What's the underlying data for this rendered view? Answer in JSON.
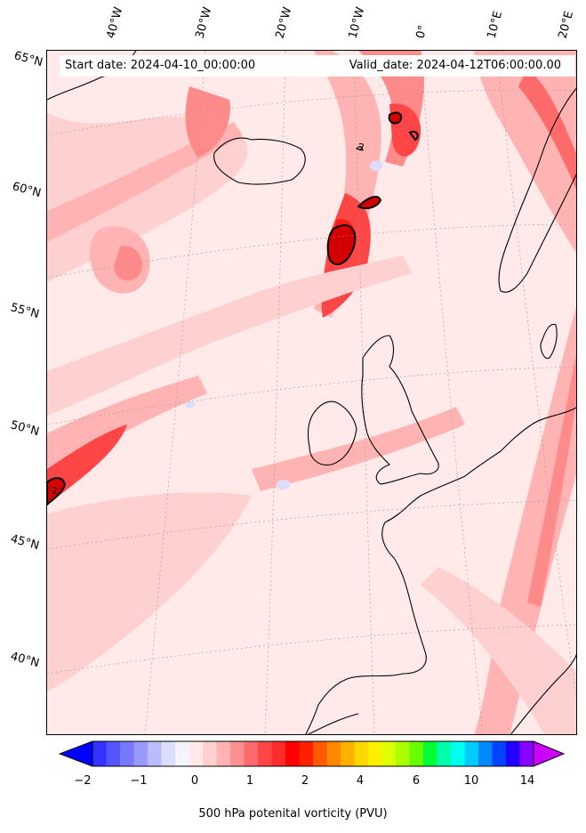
{
  "header": {
    "start_date": "Start date: 2024-04-10_00:00:00",
    "valid_date": "Valid_date: 2024-04-12T06:00:00.00"
  },
  "lat_labels": [
    "65°N",
    "60°N",
    "55°N",
    "50°N",
    "45°N",
    "40°N"
  ],
  "lon_labels": [
    "40°W",
    "30°W",
    "20°W",
    "10°W",
    "0°",
    "10°E",
    "20°E"
  ],
  "contour_labels": [
    "2",
    "2"
  ],
  "colorbar": {
    "label": "500 hPa potenital vorticity (PVU)",
    "ticks": [
      "−2",
      "−1",
      "0",
      "1",
      "2",
      "4",
      "6",
      "10",
      "14"
    ],
    "colors": [
      "#0000ff",
      "#3333ff",
      "#5555ff",
      "#7777ff",
      "#9999ff",
      "#bbbbff",
      "#ddddff",
      "#f4f4ff",
      "#ffe9e9",
      "#ffd0d0",
      "#ffb3b3",
      "#ff9090",
      "#ff6a6a",
      "#ff4646",
      "#ff2a2a",
      "#ff0000",
      "#ff2000",
      "#ff5a00",
      "#ff8800",
      "#ffb000",
      "#ffd800",
      "#fff000",
      "#ddff00",
      "#aaff00",
      "#66ff00",
      "#00ff33",
      "#00ffaa",
      "#00ffee",
      "#00ccff",
      "#0088ff",
      "#0044ff",
      "#2200ff",
      "#8800ff",
      "#cc00ff"
    ]
  },
  "fill_colors": {
    "bg": "#ffe9e9",
    "light": "#ffd0d0",
    "mid": "#ffb3b3",
    "strong": "#ff8a8a",
    "deep": "#ff4646",
    "core": "#ff1a1a",
    "max": "#d40000",
    "neg": "#dcdcff"
  }
}
